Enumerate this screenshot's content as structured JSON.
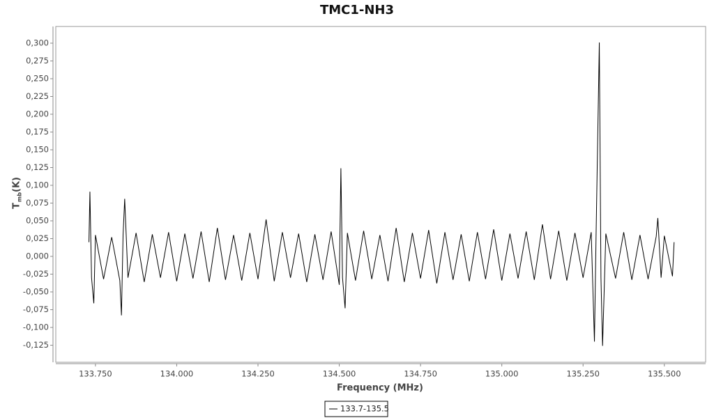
{
  "chart_data": {
    "type": "line",
    "title": "TMC1-NH3",
    "xlabel": "Frequency (MHz)",
    "ylabel": "T",
    "ylabel_sub": "mb",
    "ylabel_unit": "(K)",
    "xlim": [
      133.628,
      135.627
    ],
    "ylim": [
      -0.149,
      0.3235
    ],
    "xticks": [
      {
        "value": 133.75,
        "label": "133.750"
      },
      {
        "value": 134,
        "label": "134.000"
      },
      {
        "value": 134.25,
        "label": "134.250"
      },
      {
        "value": 134.5,
        "label": "134.500"
      },
      {
        "value": 134.75,
        "label": "134.750"
      },
      {
        "value": 135,
        "label": "135.000"
      },
      {
        "value": 135.25,
        "label": "135.250"
      },
      {
        "value": 135.5,
        "label": "135.500"
      }
    ],
    "yticks": [
      {
        "value": 0.3,
        "label": "0,300"
      },
      {
        "value": 0.275,
        "label": "0,275"
      },
      {
        "value": 0.25,
        "label": "0,250"
      },
      {
        "value": 0.225,
        "label": "0,225"
      },
      {
        "value": 0.2,
        "label": "0,200"
      },
      {
        "value": 0.175,
        "label": "0,175"
      },
      {
        "value": 0.15,
        "label": "0,150"
      },
      {
        "value": 0.125,
        "label": "0,125"
      },
      {
        "value": 0.1,
        "label": "0,100"
      },
      {
        "value": 0.075,
        "label": "0,075"
      },
      {
        "value": 0.05,
        "label": "0,050"
      },
      {
        "value": 0.025,
        "label": "0,025"
      },
      {
        "value": 0,
        "label": "0,000"
      },
      {
        "value": -0.025,
        "label": "-0,025"
      },
      {
        "value": -0.05,
        "label": "-0,050"
      },
      {
        "value": -0.075,
        "label": "-0,075"
      },
      {
        "value": -0.1,
        "label": "-0,100"
      },
      {
        "value": -0.125,
        "label": "-0,125"
      }
    ],
    "x": [
      133.73,
      133.733,
      133.738,
      133.745,
      133.75,
      133.775,
      133.8,
      133.825,
      133.83,
      133.835,
      133.84,
      133.85,
      133.875,
      133.9,
      133.925,
      133.95,
      133.975,
      134.0,
      134.025,
      134.05,
      134.075,
      134.1,
      134.125,
      134.15,
      134.175,
      134.2,
      134.225,
      134.25,
      134.275,
      134.3,
      134.325,
      134.35,
      134.375,
      134.4,
      134.425,
      134.45,
      134.475,
      134.5,
      134.505,
      134.51,
      134.518,
      134.525,
      134.55,
      134.575,
      134.6,
      134.625,
      134.65,
      134.675,
      134.7,
      134.725,
      134.75,
      134.775,
      134.8,
      134.825,
      134.85,
      134.875,
      134.9,
      134.925,
      134.95,
      134.975,
      135.0,
      135.025,
      135.05,
      135.075,
      135.1,
      135.125,
      135.15,
      135.175,
      135.2,
      135.225,
      135.25,
      135.275,
      135.285,
      135.29,
      135.3,
      135.305,
      135.31,
      135.32,
      135.35,
      135.375,
      135.4,
      135.425,
      135.45,
      135.475,
      135.48,
      135.49,
      135.5,
      135.525,
      135.53
    ],
    "series": [
      {
        "name": "133.7-135.5",
        "color": "#000000",
        "values": [
          0.02,
          0.091,
          -0.03,
          -0.066,
          0.03,
          -0.032,
          0.027,
          -0.034,
          -0.083,
          0.03,
          0.081,
          -0.03,
          0.033,
          -0.036,
          0.031,
          -0.03,
          0.034,
          -0.035,
          0.032,
          -0.031,
          0.035,
          -0.036,
          0.04,
          -0.033,
          0.03,
          -0.034,
          0.033,
          -0.032,
          0.052,
          -0.035,
          0.034,
          -0.03,
          0.032,
          -0.036,
          0.031,
          -0.033,
          0.035,
          -0.04,
          0.124,
          -0.03,
          -0.073,
          0.033,
          -0.034,
          0.036,
          -0.032,
          0.03,
          -0.035,
          0.04,
          -0.036,
          0.033,
          -0.031,
          0.037,
          -0.038,
          0.034,
          -0.033,
          0.031,
          -0.035,
          0.034,
          -0.032,
          0.038,
          -0.034,
          0.032,
          -0.031,
          0.035,
          -0.033,
          0.045,
          -0.032,
          0.036,
          -0.034,
          0.033,
          -0.03,
          0.034,
          -0.12,
          0.03,
          0.301,
          -0.03,
          -0.126,
          0.032,
          -0.031,
          0.034,
          -0.033,
          0.03,
          -0.032,
          0.028,
          0.054,
          -0.03,
          0.029,
          -0.028,
          0.02
        ]
      }
    ]
  }
}
